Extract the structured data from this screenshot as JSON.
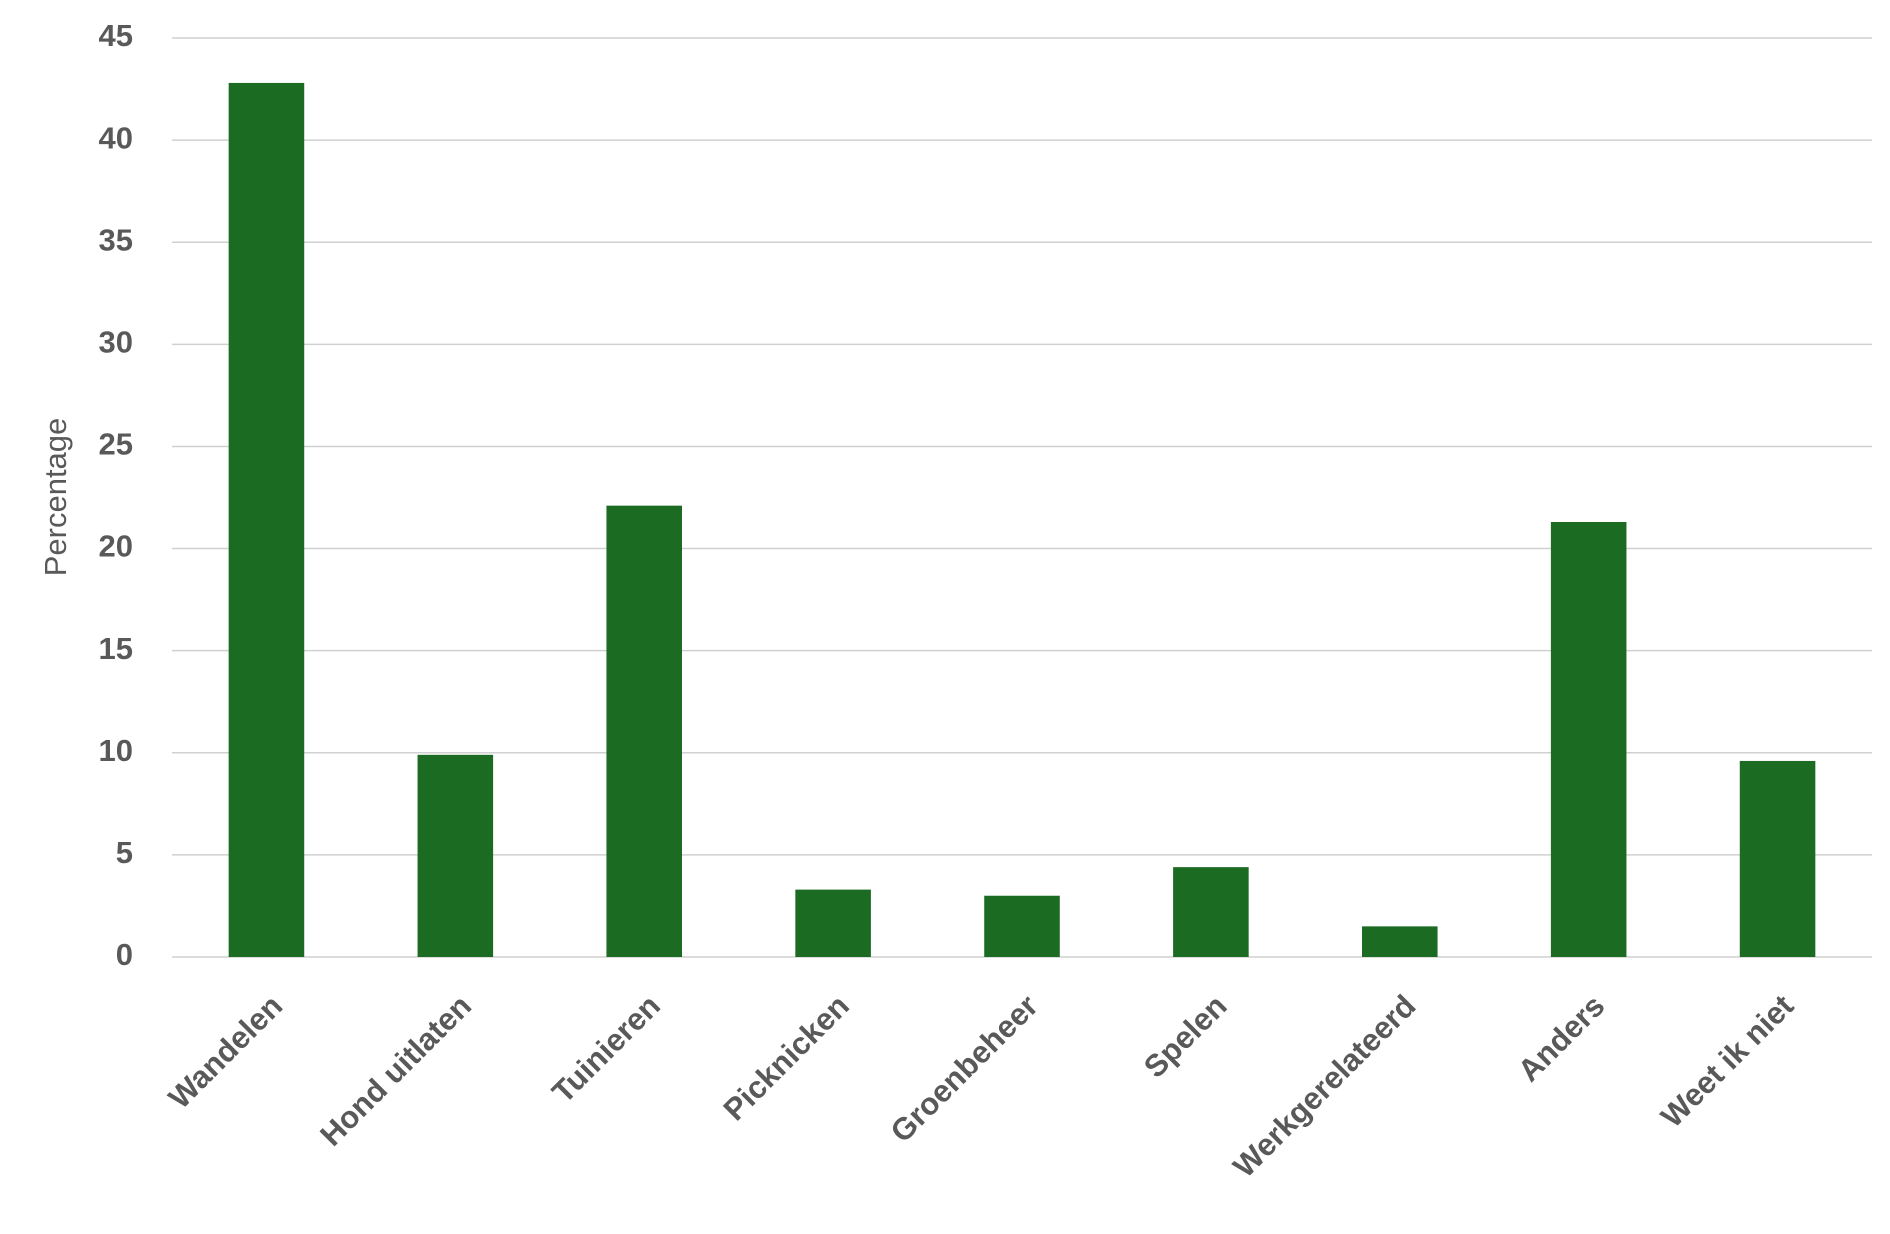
{
  "chart_data": {
    "type": "bar",
    "y_label": "Percentage",
    "categories": [
      "Wandelen",
      "Hond uitlaten",
      "Tuinieren",
      "Picknicken",
      "Groenbeheer",
      "Spelen",
      "Werkgerelateerd",
      "Anders",
      "Weet ik niet"
    ],
    "values": [
      42.8,
      9.9,
      22.1,
      3.3,
      3.0,
      4.4,
      1.5,
      21.3,
      9.6
    ],
    "color": "#1b6b23",
    "ylim": [
      0,
      45
    ],
    "yticks": [
      0,
      5,
      10,
      15,
      20,
      25,
      30,
      35,
      40,
      45
    ],
    "grid": true
  }
}
